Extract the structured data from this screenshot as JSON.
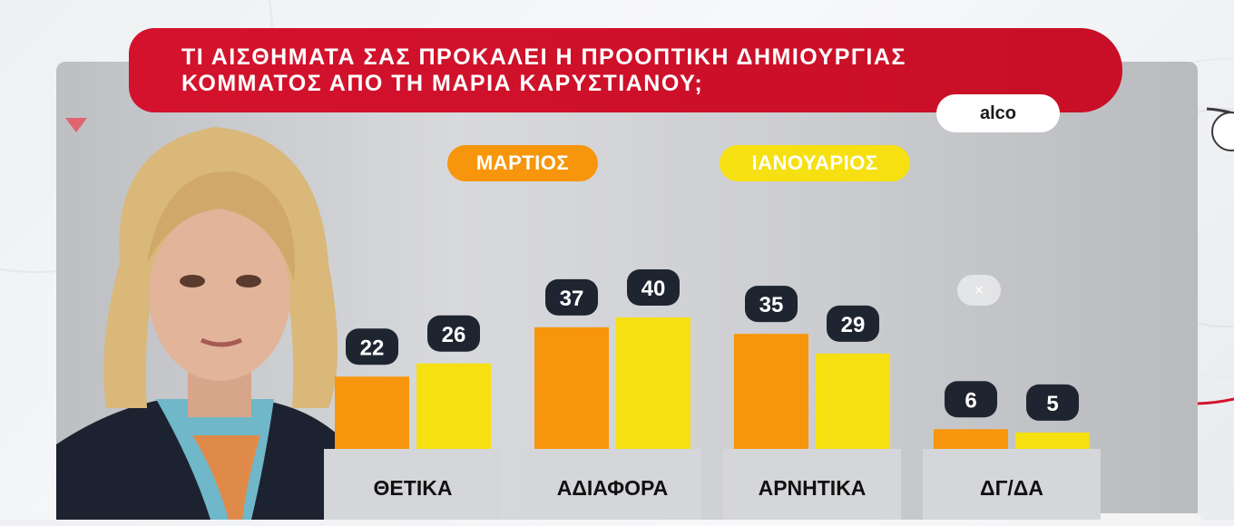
{
  "title": {
    "line1": "ΤΙ ΑΙΣΘΗΜΑΤΑ ΣΑΣ ΠΡΟΚΑΛΕΙ Η ΠΡΟΟΠΤΙΚΗ ΔΗΜΙΟΥΡΓΙΑΣ",
    "line2": "ΚΟΜΜΑΤΟΣ ΑΠΟ ΤΗ ΜΑΡΙΑ ΚΑΡΥΣΤΙΑΝΟΥ;"
  },
  "source": "alco",
  "close_label": "×",
  "colors": {
    "title_red": "#d4122d",
    "march_orange": "#f7960c",
    "january_yellow": "#f6e011",
    "value_badge": "#1f2530"
  },
  "icons": [
    "triangle-down-icon",
    "close-icon"
  ],
  "chart_data": {
    "type": "bar",
    "categories": [
      "ΘΕΤΙΚΑ",
      "ΑΔΙΑΦΟΡΑ",
      "ΑΡΝΗΤΙΚΑ",
      "ΔΓ/ΔΑ"
    ],
    "series": [
      {
        "name": "ΜΑΡΤΙΟΣ",
        "color": "#f7960c",
        "values": [
          22,
          37,
          35,
          6
        ]
      },
      {
        "name": "ΙΑΝΟΥΑΡΙΟΣ",
        "color": "#f6e011",
        "values": [
          26,
          40,
          29,
          5
        ]
      }
    ],
    "ylim": [
      0,
      40
    ],
    "grid": false,
    "legend": "top",
    "data_labels": true
  }
}
